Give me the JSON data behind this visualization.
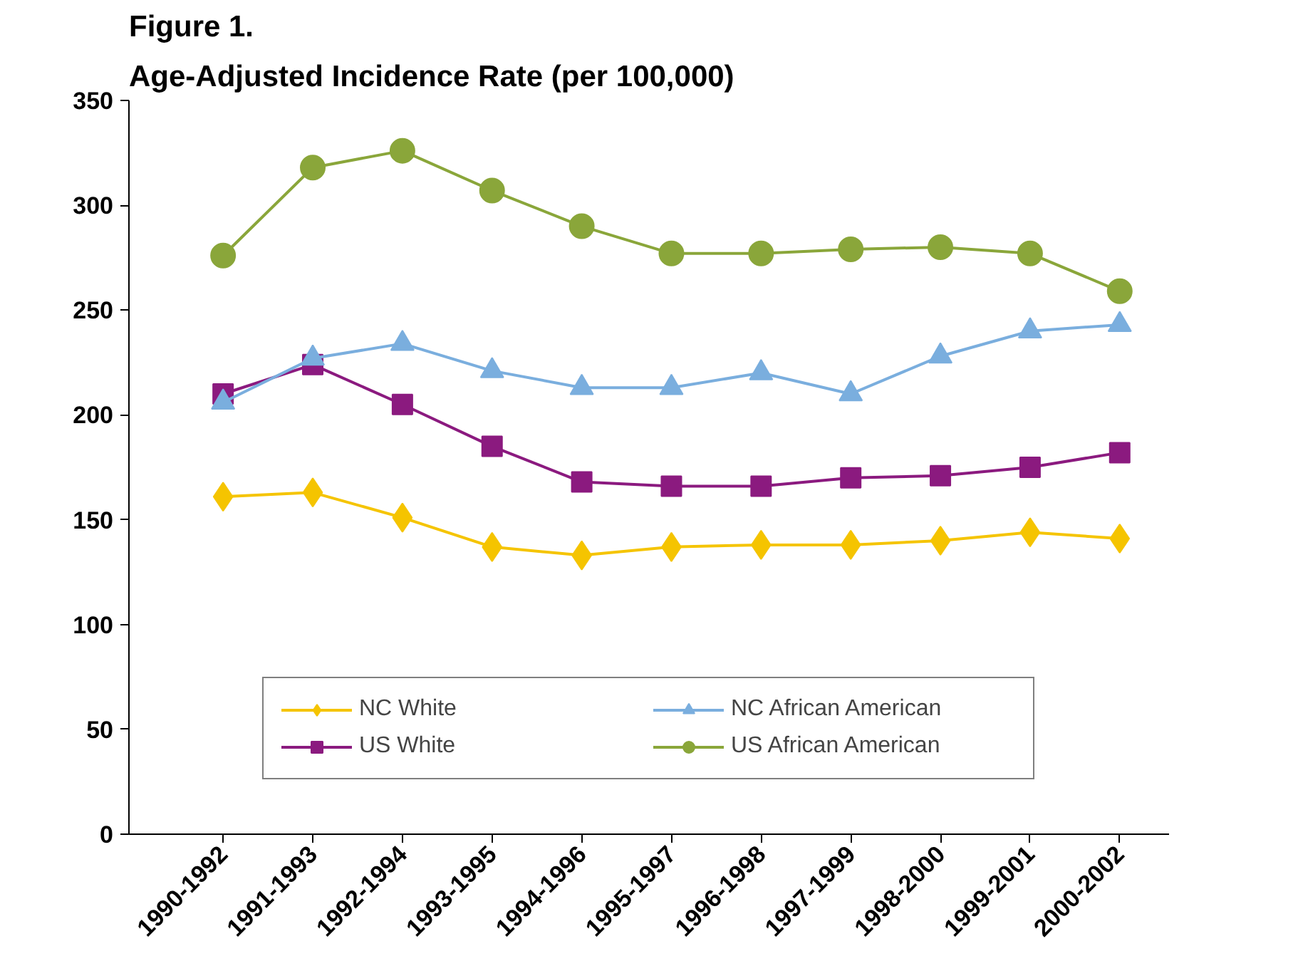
{
  "chart_data": {
    "type": "line",
    "title": "Figure 1.",
    "subtitle": "Age-Adjusted Incidence Rate (per 100,000)",
    "categories": [
      "1990-1992",
      "1991-1993",
      "1992-1994",
      "1993-1995",
      "1994-1996",
      "1995-1997",
      "1996-1998",
      "1997-1999",
      "1998-2000",
      "1999-2001",
      "2000-2002"
    ],
    "series": [
      {
        "name": "NC White",
        "color": "#f5c400",
        "marker": "diamond",
        "values": [
          161,
          163,
          151,
          137,
          133,
          137,
          138,
          138,
          140,
          144,
          141
        ]
      },
      {
        "name": "US White",
        "color": "#8b1a7f",
        "marker": "square",
        "values": [
          210,
          224,
          205,
          185,
          168,
          166,
          166,
          170,
          171,
          175,
          182
        ]
      },
      {
        "name": "NC African American",
        "color": "#7aaede",
        "marker": "triangle",
        "values": [
          206,
          227,
          234,
          221,
          213,
          213,
          220,
          210,
          228,
          240,
          243
        ]
      },
      {
        "name": "US African American",
        "color": "#8aa63a",
        "marker": "circle",
        "values": [
          276,
          318,
          326,
          307,
          290,
          277,
          277,
          279,
          280,
          277,
          259
        ]
      }
    ],
    "ylim": [
      0,
      350
    ],
    "yticks": [
      0,
      50,
      100,
      150,
      200,
      250,
      300,
      350
    ],
    "grid": false,
    "legend": "bottom",
    "line_style": "solid"
  }
}
